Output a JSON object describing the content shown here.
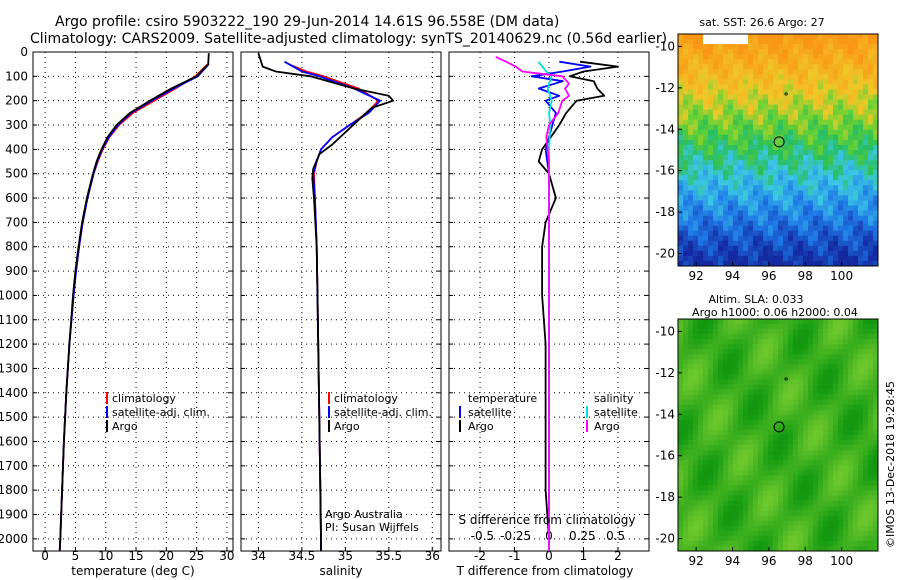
{
  "title": {
    "line1": "Argo profile: csiro 5903222_190 29-Jun-2014 14.61S 96.558E (DM data)",
    "line2": "Climatology: CARS2009. Satellite-adjusted climatology: synTS_20140629.nc (0.56d earlier)"
  },
  "colors": {
    "climatology": "#ff0000",
    "satellite": "#0000ff",
    "argo": "#000000",
    "sal_satellite": "#00e0e0",
    "sal_argo": "#ff00ff"
  },
  "depth_axis": {
    "ticks": [
      "0",
      "100",
      "200",
      "300",
      "400",
      "500",
      "600",
      "700",
      "800",
      "900",
      "1000",
      "1100",
      "1200",
      "1300",
      "1400",
      "1500",
      "1600",
      "1700",
      "1800",
      "1900",
      "2000"
    ],
    "max": 2050
  },
  "chart_data": [
    {
      "type": "line",
      "panel": "temperature",
      "xlabel": "temperature (deg C)",
      "xlim": [
        -2,
        31
      ],
      "xticks": [
        "0",
        "5",
        "10",
        "15",
        "20",
        "25",
        "30"
      ],
      "legend": [
        "climatology",
        "satellite-adj. clim.",
        "Argo"
      ],
      "series": [
        {
          "name": "climatology",
          "depth": [
            50,
            100,
            150,
            200,
            250,
            300,
            350,
            400,
            450,
            500,
            600,
            700,
            800,
            900,
            1000,
            1200,
            1400,
            1600,
            1800,
            2000,
            2050
          ],
          "values": [
            26.8,
            24.8,
            21.5,
            18.0,
            14.5,
            12.2,
            10.6,
            9.5,
            8.7,
            8.0,
            7.0,
            6.2,
            5.6,
            5.1,
            4.7,
            4.0,
            3.5,
            3.1,
            2.8,
            2.5,
            2.4
          ]
        },
        {
          "name": "satellite-adj. clim.",
          "depth": [
            50,
            100,
            150,
            200,
            250,
            300,
            350,
            400,
            450,
            500,
            600,
            700,
            800,
            900,
            1000,
            1200,
            1400,
            1600,
            1800,
            2000,
            2050
          ],
          "values": [
            27.0,
            25.2,
            21.2,
            17.6,
            14.2,
            12.0,
            10.5,
            9.4,
            8.6,
            8.0,
            7.0,
            6.2,
            5.6,
            5.1,
            4.7,
            4.0,
            3.5,
            3.1,
            2.8,
            2.5,
            2.4
          ]
        },
        {
          "name": "Argo",
          "depth": [
            5,
            50,
            100,
            150,
            200,
            250,
            300,
            350,
            400,
            450,
            500,
            600,
            700,
            800,
            900,
            1000,
            1200,
            1400,
            1600,
            1800,
            2000,
            2050
          ],
          "values": [
            27.0,
            26.9,
            25.0,
            20.8,
            17.3,
            14.0,
            11.8,
            10.3,
            9.3,
            8.5,
            7.9,
            6.9,
            6.1,
            5.5,
            5.0,
            4.6,
            4.0,
            3.5,
            3.1,
            2.8,
            2.5,
            2.4
          ]
        }
      ]
    },
    {
      "type": "line",
      "panel": "salinity",
      "xlabel": "salinity",
      "xlim": [
        33.8,
        36.1
      ],
      "xticks": [
        "34",
        "34.5",
        "35",
        "35.5",
        "36"
      ],
      "legend": [
        "climatology",
        "satellite-adj. clim.",
        "Argo"
      ],
      "series": [
        {
          "name": "climatology",
          "depth": [
            50,
            80,
            100,
            150,
            200,
            250,
            300,
            350,
            400,
            450,
            500,
            600,
            800,
            1000,
            1500,
            2000,
            2050
          ],
          "values": [
            34.35,
            34.55,
            34.75,
            35.15,
            35.38,
            35.25,
            35.05,
            34.85,
            34.72,
            34.67,
            34.64,
            34.65,
            34.67,
            34.68,
            34.7,
            34.72,
            34.72
          ]
        },
        {
          "name": "satellite-adj. clim.",
          "depth": [
            40,
            80,
            100,
            150,
            200,
            250,
            300,
            350,
            400,
            450,
            500,
            600,
            800,
            1000,
            1500,
            2000,
            2050
          ],
          "values": [
            34.3,
            34.5,
            34.7,
            35.1,
            35.4,
            35.27,
            35.05,
            34.85,
            34.72,
            34.67,
            34.63,
            34.65,
            34.67,
            34.68,
            34.7,
            34.72,
            34.72
          ]
        },
        {
          "name": "Argo",
          "depth": [
            5,
            60,
            80,
            100,
            150,
            180,
            200,
            230,
            280,
            330,
            380,
            420,
            480,
            520,
            600,
            800,
            1000,
            1500,
            2000,
            2050
          ],
          "values": [
            34.0,
            34.05,
            34.2,
            34.6,
            35.1,
            35.5,
            35.55,
            35.3,
            35.15,
            35.0,
            34.85,
            34.7,
            34.63,
            34.62,
            34.64,
            34.67,
            34.68,
            34.7,
            34.72,
            34.72
          ]
        }
      ]
    },
    {
      "type": "line",
      "panel": "differences",
      "xlabel": "T difference from climatology",
      "xlabel_top": "S difference from climatology",
      "xlim": [
        -2.9,
        2.9
      ],
      "xticks": [
        "-2",
        "-1",
        "0",
        "1",
        "2"
      ],
      "xticks_top": [
        "-0.5",
        "-0.25",
        "0",
        "0.25",
        "0.5"
      ],
      "legend_left_title": "temperature",
      "legend_right_title": "salinity",
      "legend_left": [
        "satellite",
        "Argo"
      ],
      "legend_right": [
        "satellite",
        "Argo"
      ],
      "series": [
        {
          "name": "temperature satellite",
          "depth": [
            40,
            60,
            80,
            100,
            120,
            150,
            180,
            200,
            250,
            300,
            400,
            500,
            600,
            800,
            1000,
            1500,
            2000,
            2050
          ],
          "values": [
            0.3,
            1.2,
            0.4,
            -0.5,
            0.4,
            -0.3,
            0.3,
            -0.1,
            0.2,
            0.1,
            -0.1,
            0.0,
            0.0,
            0.0,
            0.0,
            0.0,
            0.0,
            0.0
          ]
        },
        {
          "name": "temperature Argo",
          "depth": [
            40,
            60,
            80,
            100,
            120,
            150,
            180,
            200,
            250,
            300,
            400,
            450,
            500,
            600,
            700,
            800,
            1000,
            1200,
            1500,
            1800,
            2000,
            2050
          ],
          "values": [
            0.9,
            2.0,
            1.0,
            0.6,
            1.3,
            1.4,
            1.6,
            0.8,
            0.5,
            0.3,
            -0.2,
            -0.3,
            0.0,
            0.2,
            -0.1,
            -0.2,
            -0.2,
            -0.1,
            -0.1,
            -0.1,
            0.0,
            0.0
          ]
        },
        {
          "name": "salinity satellite",
          "depth": [
            40,
            60,
            80,
            100,
            130,
            150,
            200,
            250,
            300,
            400,
            500,
            800,
            1200,
            1600,
            2000,
            2050
          ],
          "values": [
            -0.08,
            -0.05,
            -0.02,
            0.02,
            0.0,
            -0.01,
            0.02,
            0.0,
            0.01,
            0.0,
            0.0,
            0.0,
            0.0,
            0.0,
            0.0,
            0.0
          ]
        },
        {
          "name": "salinity Argo",
          "depth": [
            20,
            40,
            60,
            80,
            100,
            130,
            150,
            180,
            200,
            250,
            300,
            350,
            400,
            450,
            500,
            600,
            800,
            1000,
            1500,
            2000,
            2050
          ],
          "values": [
            -0.4,
            -0.32,
            -0.25,
            -0.2,
            0.1,
            0.15,
            0.12,
            0.15,
            0.1,
            0.07,
            0.0,
            -0.02,
            -0.01,
            0.0,
            0.0,
            0.0,
            0.0,
            0.0,
            0.0,
            0.0,
            0.0
          ]
        }
      ]
    },
    {
      "type": "heatmap",
      "panel": "sst_map",
      "title": "sat. SST: 26.6 Argo: 27",
      "xlim": [
        91,
        102
      ],
      "ylim": [
        -20.6,
        -9.4
      ],
      "xticks": [
        "92",
        "94",
        "96",
        "98",
        "100"
      ],
      "yticks": [
        "-10",
        "-12",
        "-14",
        "-16",
        "-18",
        "-20"
      ],
      "argo_position": {
        "lon": 96.56,
        "lat": -14.61
      }
    },
    {
      "type": "heatmap",
      "panel": "sla_map",
      "title_line1": "Altim. SLA: 0.033",
      "title_line2": "Argo h1000: 0.06 h2000: 0.04",
      "xlim": [
        91,
        102
      ],
      "ylim": [
        -20.6,
        -9.4
      ],
      "xticks": [
        "92",
        "94",
        "96",
        "98",
        "100"
      ],
      "yticks": [
        "-10",
        "-12",
        "-14",
        "-16",
        "-18",
        "-20"
      ],
      "argo_position": {
        "lon": 96.56,
        "lat": -14.61
      }
    }
  ],
  "credits": {
    "line1": "Argo Australia",
    "line2": "PI: Susan Wijffels"
  },
  "footer": "©IMOS 13-Dec-2018 19:28:45"
}
